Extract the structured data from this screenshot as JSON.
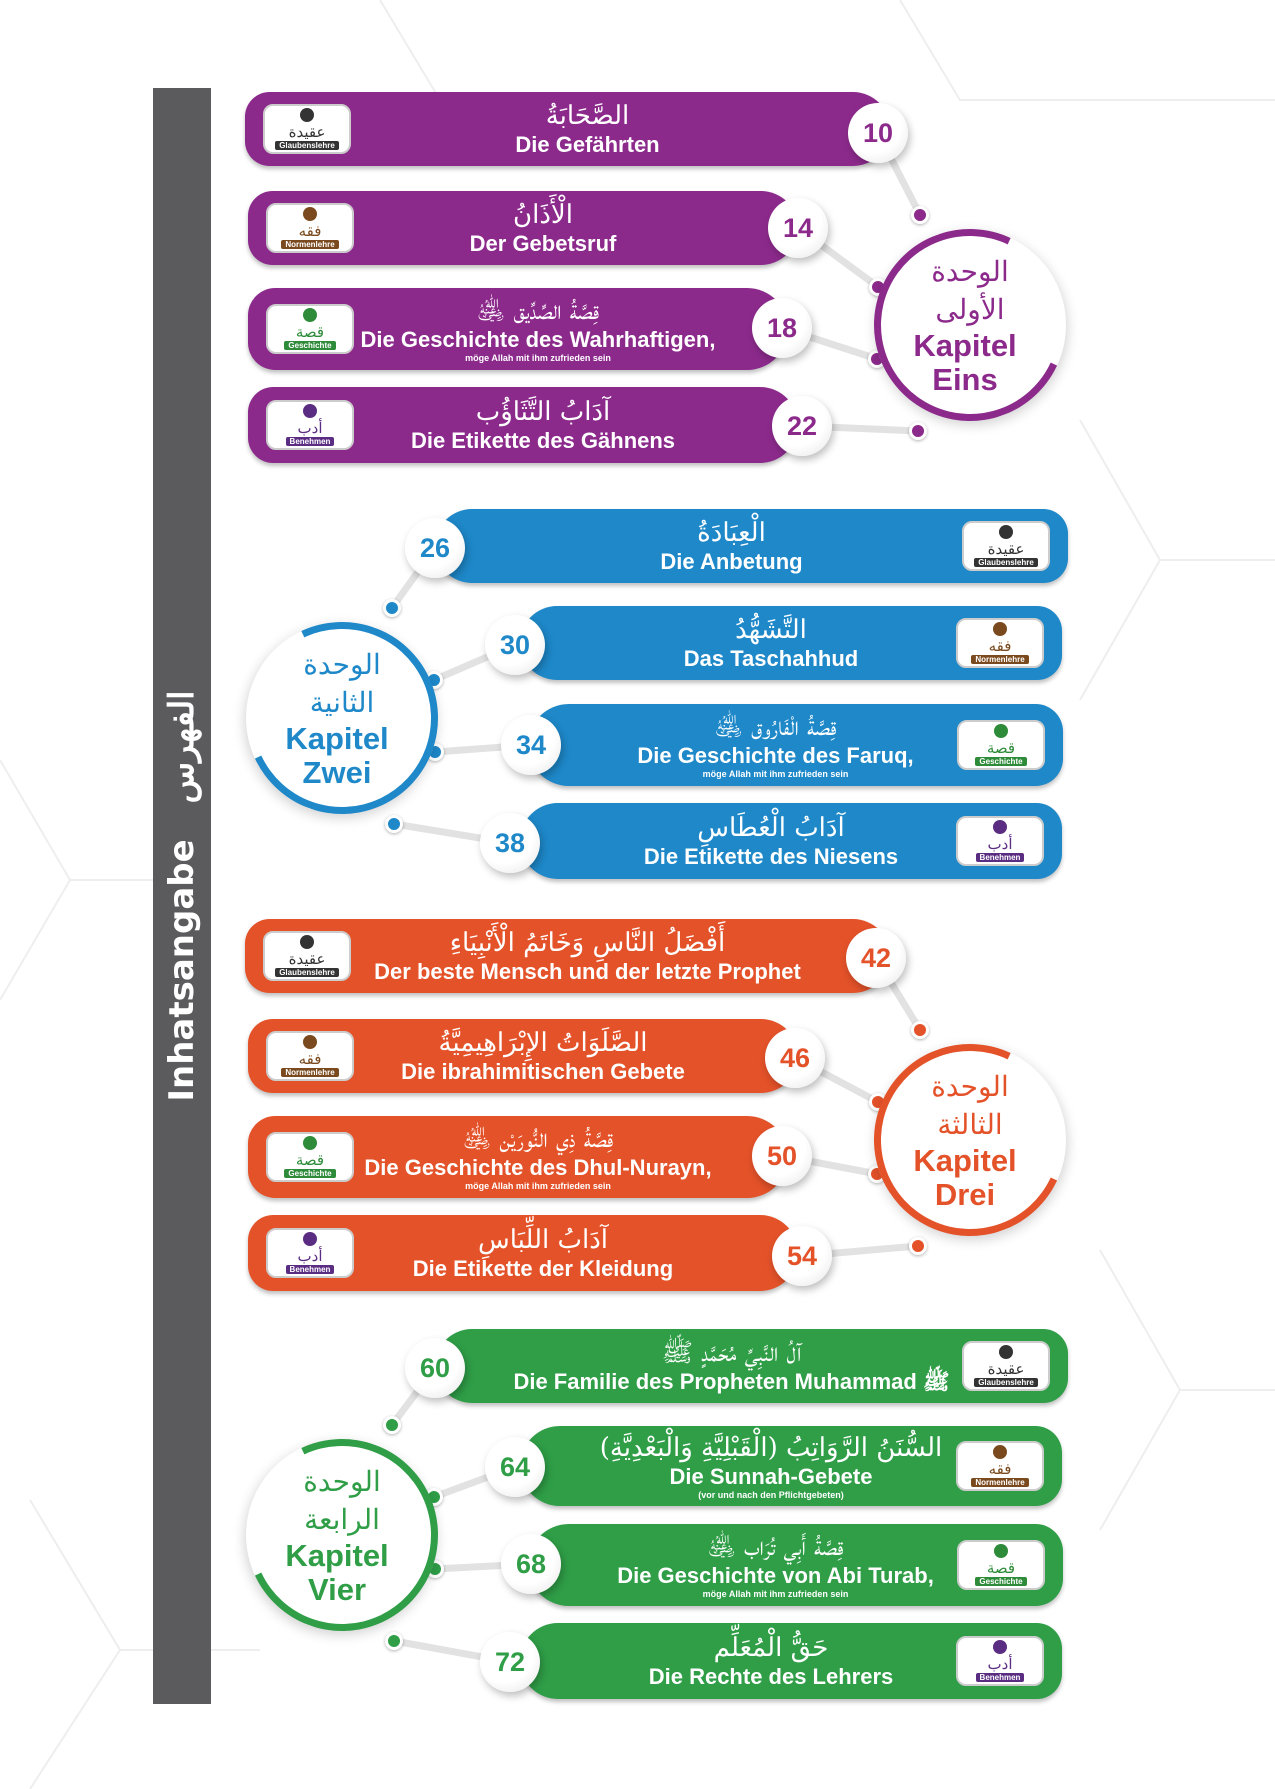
{
  "sidebar": {
    "title_de": "Inhatsangabe",
    "title_ar": "الفهرس"
  },
  "categories": {
    "aqidah": {
      "ar": "عقيدة",
      "de": "Glaubenslehre",
      "color": "#333333",
      "icon": "raised-finger-icon"
    },
    "fiqh": {
      "ar": "فقه",
      "de": "Normenlehre",
      "color": "#7a4a1e",
      "icon": "kaaba-icon"
    },
    "qissa": {
      "ar": "قصة",
      "de": "Geschichte",
      "color": "#2e8b3a",
      "icon": "book-icon"
    },
    "adab": {
      "ar": "أدب",
      "de": "Benehmen",
      "color": "#5a2d82",
      "icon": "person-icon"
    }
  },
  "units": [
    {
      "color": "#8c2a8c",
      "title_ar": "الوحدة الأولى",
      "title_de": "Kapitel Eins",
      "lessons": [
        {
          "page": "10",
          "ar": "الصَّحَابَةُ",
          "de": "Die Gefährten",
          "category": "aqidah"
        },
        {
          "page": "14",
          "ar": "الْأَذَانُ",
          "de": "Der Gebetsruf",
          "category": "fiqh"
        },
        {
          "page": "18",
          "ar": "قِصَّةُ الصِّدِّيق ﵁",
          "de": "Die Geschichte des Wahrhaftigen,",
          "sub": "möge Allah mit ihm zufrieden sein",
          "category": "qissa"
        },
        {
          "page": "22",
          "ar": "آدَابُ التَّثَاؤُب",
          "de": "Die Etikette des Gähnens",
          "category": "adab"
        }
      ]
    },
    {
      "color": "#1e88c9",
      "title_ar": "الوحدة الثانية",
      "title_de": "Kapitel Zwei",
      "lessons": [
        {
          "page": "26",
          "ar": "الْعِبَادَةُ",
          "de": "Die Anbetung",
          "category": "aqidah"
        },
        {
          "page": "30",
          "ar": "التَّشَهُّدُ",
          "de": "Das Taschahhud",
          "category": "fiqh"
        },
        {
          "page": "34",
          "ar": "قِصَّةُ الْفَارُوق ﵁",
          "de": "Die Geschichte des Faruq,",
          "sub": "möge Allah mit ihm zufrieden sein",
          "category": "qissa"
        },
        {
          "page": "38",
          "ar": "آدَابُ الْعُطَاسِ",
          "de": "Die Etikette des Niesens",
          "category": "adab"
        }
      ]
    },
    {
      "color": "#e45229",
      "title_ar": "الوحدة الثالثة",
      "title_de": "Kapitel Drei",
      "lessons": [
        {
          "page": "42",
          "ar": "أَفْضَلُ النَّاسِ وَخَاتَمُ الْأَنْبِيَاءِ",
          "de": "Der beste Mensch und der letzte Prophet",
          "category": "aqidah"
        },
        {
          "page": "46",
          "ar": "الصَّلَوَاتُ الإِبْرَاهِيمِيَّةُ",
          "de": "Die ibrahimitischen Gebete",
          "category": "fiqh"
        },
        {
          "page": "50",
          "ar": "قِصَّةُ ذِي النُّورَيْن ﵁",
          "de": "Die Geschichte des Dhul-Nurayn,",
          "sub": "möge Allah mit ihm zufrieden sein",
          "category": "qissa"
        },
        {
          "page": "54",
          "ar": "آدَابُ اللِّبَاسِ",
          "de": "Die Etikette der Kleidung",
          "category": "adab"
        }
      ]
    },
    {
      "color": "#2f9e47",
      "title_ar": "الوحدة الرابعة",
      "title_de": "Kapitel Vier",
      "lessons": [
        {
          "page": "60",
          "ar": "آلُ النَّبِيِّ مُحَمَّدٍ ﷺ",
          "de": "Die Familie des Propheten Muhammad ﷺ",
          "category": "aqidah"
        },
        {
          "page": "64",
          "ar": "السُّنَنُ الرَّوَاتِبُ (الْقَبْلِيَّةِ وَالْبَعْدِيَّةِ)",
          "de": "Die Sunnah-Gebete",
          "sub": "(vor und nach den Pflichtgebeten)",
          "category": "fiqh"
        },
        {
          "page": "68",
          "ar": "قِصَّةُ أَبِي تُرَاب ﵁",
          "de": "Die Geschichte von Abi Turab,",
          "sub": "möge Allah mit ihm zufrieden sein",
          "category": "qissa"
        },
        {
          "page": "72",
          "ar": "حَقُّ الْمُعَلِّم",
          "de": "Die Rechte des Lehrers",
          "category": "adab"
        }
      ]
    }
  ]
}
